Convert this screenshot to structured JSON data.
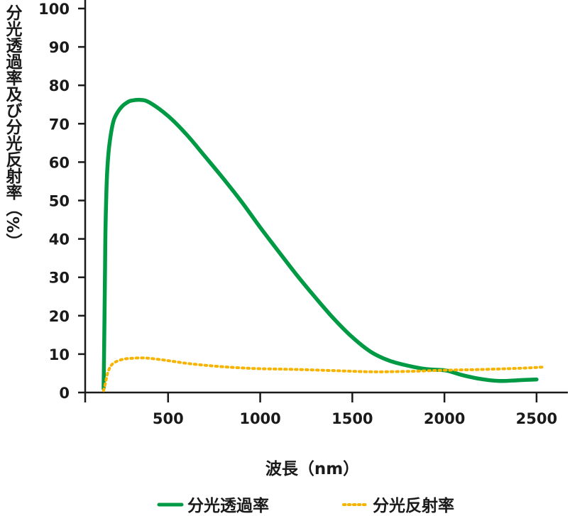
{
  "chart_data": {
    "type": "line",
    "xlabel": "波長（nm）",
    "ylabel": "分光透過率及び分光反射率（%）",
    "xlim": [
      50,
      2670
    ],
    "ylim": [
      0,
      100
    ],
    "xticks": [
      500,
      1000,
      1500,
      2000,
      2500
    ],
    "yticks": [
      0,
      10,
      20,
      30,
      40,
      50,
      60,
      70,
      80,
      90,
      100
    ],
    "legend_position": "bottom",
    "grid": false,
    "series": [
      {
        "name": "分光透過率",
        "color": "#009944",
        "style": "solid",
        "x": [
          150,
          152,
          155,
          158,
          160,
          165,
          170,
          180,
          200,
          220,
          250,
          280,
          300,
          350,
          400,
          500,
          600,
          700,
          800,
          900,
          1000,
          1100,
          1200,
          1300,
          1400,
          1500,
          1600,
          1700,
          1800,
          1900,
          2000,
          2050,
          2100,
          2200,
          2300,
          2400,
          2500
        ],
        "y": [
          1,
          8,
          20,
          33,
          42,
          52,
          58,
          64,
          70,
          72.5,
          74.5,
          75.6,
          76,
          76.2,
          75.5,
          72,
          67.2,
          61.5,
          55.7,
          49.6,
          43,
          36.7,
          30.5,
          24.7,
          19.2,
          14.4,
          10.6,
          8.3,
          7,
          6.1,
          5.8,
          5.2,
          4.5,
          3.5,
          3,
          3.2,
          3.4
        ]
      },
      {
        "name": "分光反射率",
        "color": "#f6b300",
        "style": "dotted",
        "x": [
          150,
          160,
          175,
          200,
          250,
          300,
          350,
          400,
          500,
          600,
          700,
          800,
          900,
          1000,
          1200,
          1400,
          1600,
          1800,
          2000,
          2200,
          2400,
          2530
        ],
        "y": [
          0.5,
          2.5,
          5.5,
          7.5,
          8.6,
          8.9,
          9,
          8.9,
          8.3,
          7.6,
          7.1,
          6.7,
          6.4,
          6.2,
          6,
          5.7,
          5.4,
          5.5,
          5.8,
          6,
          6.3,
          6.6
        ]
      }
    ]
  }
}
